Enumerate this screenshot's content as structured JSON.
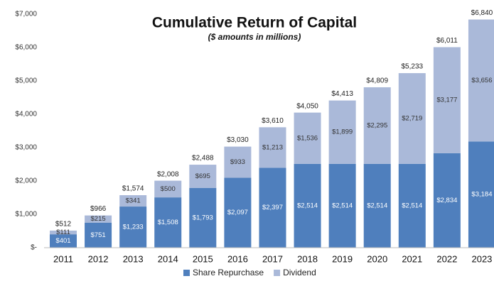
{
  "chart_data": {
    "type": "stacked_bar",
    "title": "Cumulative Return of Capital",
    "subtitle": "($ amounts in millions)",
    "categories": [
      "2011",
      "2012",
      "2013",
      "2014",
      "2015",
      "2016",
      "2017",
      "2018",
      "2019",
      "2020",
      "2021",
      "2022",
      "2023"
    ],
    "series": [
      {
        "name": "Share Repurchase",
        "color": "#4f7fbd",
        "values": [
          401,
          751,
          1233,
          1508,
          1793,
          2097,
          2397,
          2514,
          2514,
          2514,
          2514,
          2834,
          3184
        ],
        "value_labels": [
          "$401",
          "$751",
          "$1,233",
          "$1,508",
          "$1,793",
          "$2,097",
          "$2,397",
          "$2,514",
          "$2,514",
          "$2,514",
          "$2,514",
          "$2,834",
          "$3,184"
        ]
      },
      {
        "name": "Dividend",
        "color": "#aab9d9",
        "values": [
          111,
          215,
          341,
          500,
          695,
          933,
          1213,
          1536,
          1899,
          2295,
          2719,
          3177,
          3656
        ],
        "value_labels": [
          "$111",
          "$215",
          "$341",
          "$500",
          "$695",
          "$933",
          "$1,213",
          "$1,536",
          "$1,899",
          "$2,295",
          "$2,719",
          "$3,177",
          "$3,656"
        ]
      }
    ],
    "totals": [
      512,
      966,
      1574,
      2008,
      2488,
      3030,
      3610,
      4050,
      4413,
      4809,
      5233,
      6011,
      6840
    ],
    "total_labels": [
      "$512",
      "$966",
      "$1,574",
      "$2,008",
      "$2,488",
      "$3,030",
      "$3,610",
      "$4,050",
      "$4,413",
      "$4,809",
      "$5,233",
      "$6,011",
      "$6,840"
    ],
    "ylim": [
      0,
      7000
    ],
    "yticks": [
      {
        "value": 0,
        "label": "$-"
      },
      {
        "value": 1000,
        "label": "$1,000"
      },
      {
        "value": 2000,
        "label": "$2,000"
      },
      {
        "value": 3000,
        "label": "$3,000"
      },
      {
        "value": 4000,
        "label": "$4,000"
      },
      {
        "value": 5000,
        "label": "$5,000"
      },
      {
        "value": 6000,
        "label": "$6,000"
      },
      {
        "value": 7000,
        "label": "$7,000"
      }
    ],
    "legend": "bottom"
  }
}
